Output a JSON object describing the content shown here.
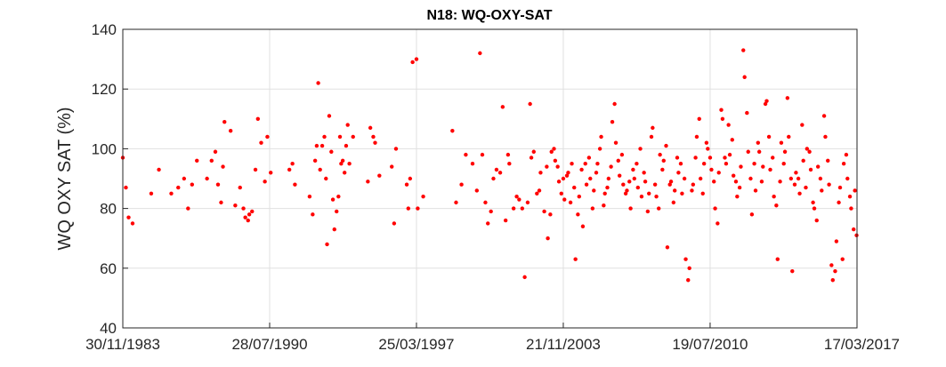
{
  "chart_data": {
    "type": "scatter",
    "title": "N18: WQ-OXY-SAT",
    "xlabel": "",
    "ylabel": "WQ OXY SAT (%)",
    "x_scale": "date",
    "xlim": [
      "1983-11-30",
      "2017-03-17"
    ],
    "ylim": [
      40,
      140
    ],
    "x_ticks": [
      "1983-11-30",
      "1990-07-28",
      "1997-03-25",
      "2003-11-21",
      "2010-07-19",
      "2017-03-17"
    ],
    "x_tick_labels": [
      "30/11/1983",
      "28/07/1990",
      "25/03/1997",
      "21/11/2003",
      "19/07/2010",
      "17/03/2017"
    ],
    "y_ticks": [
      40,
      60,
      80,
      100,
      120,
      140
    ],
    "y_tick_labels": [
      "40",
      "60",
      "80",
      "100",
      "120",
      "140"
    ],
    "grid": true,
    "marker_color": "#ff0000",
    "points": [
      [
        "1983-11-30",
        97
      ],
      [
        "1984-01-20",
        87
      ],
      [
        "1984-03-05",
        77
      ],
      [
        "1984-05-10",
        75
      ],
      [
        "1985-03-15",
        85
      ],
      [
        "1985-07-20",
        93
      ],
      [
        "1986-02-10",
        85
      ],
      [
        "1986-06-05",
        87
      ],
      [
        "1986-09-10",
        90
      ],
      [
        "1986-11-15",
        80
      ],
      [
        "1987-01-20",
        88
      ],
      [
        "1987-04-10",
        96
      ],
      [
        "1987-09-25",
        90
      ],
      [
        "1987-12-10",
        96
      ],
      [
        "1988-02-10",
        99
      ],
      [
        "1988-03-25",
        88
      ],
      [
        "1988-05-15",
        82
      ],
      [
        "1988-06-15",
        94
      ],
      [
        "1988-07-10",
        109
      ],
      [
        "1988-10-20",
        106
      ],
      [
        "1989-01-05",
        81
      ],
      [
        "1989-03-25",
        87
      ],
      [
        "1989-05-20",
        80
      ],
      [
        "1989-06-20",
        77
      ],
      [
        "1989-08-05",
        76
      ],
      [
        "1989-08-25",
        78
      ],
      [
        "1989-10-10",
        79
      ],
      [
        "1989-12-05",
        93
      ],
      [
        "1990-01-15",
        110
      ],
      [
        "1990-03-10",
        102
      ],
      [
        "1990-05-10",
        89
      ],
      [
        "1990-06-20",
        104
      ],
      [
        "1990-08-15",
        92
      ],
      [
        "1991-06-20",
        93
      ],
      [
        "1991-08-10",
        95
      ],
      [
        "1991-09-20",
        88
      ],
      [
        "1992-05-20",
        84
      ],
      [
        "1992-07-10",
        78
      ],
      [
        "1992-08-20",
        96
      ],
      [
        "1992-09-15",
        101
      ],
      [
        "1992-10-10",
        122
      ],
      [
        "1992-11-10",
        93
      ],
      [
        "1992-12-15",
        101
      ],
      [
        "1993-01-20",
        104
      ],
      [
        "1993-02-15",
        90
      ],
      [
        "1993-03-05",
        68
      ],
      [
        "1993-04-10",
        111
      ],
      [
        "1993-05-15",
        99
      ],
      [
        "1993-06-10",
        83
      ],
      [
        "1993-07-05",
        73
      ],
      [
        "1993-08-10",
        79
      ],
      [
        "1993-09-10",
        84
      ],
      [
        "1993-10-05",
        104
      ],
      [
        "1993-10-25",
        95
      ],
      [
        "1993-11-20",
        96
      ],
      [
        "1993-12-20",
        92
      ],
      [
        "1994-01-15",
        101
      ],
      [
        "1994-02-10",
        108
      ],
      [
        "1994-03-10",
        95
      ],
      [
        "1994-05-10",
        104
      ],
      [
        "1995-01-10",
        89
      ],
      [
        "1995-02-20",
        107
      ],
      [
        "1995-04-10",
        104
      ],
      [
        "1995-05-10",
        102
      ],
      [
        "1995-07-20",
        91
      ],
      [
        "1996-02-10",
        94
      ],
      [
        "1996-03-20",
        75
      ],
      [
        "1996-04-20",
        100
      ],
      [
        "1996-10-15",
        88
      ],
      [
        "1996-11-10",
        80
      ],
      [
        "1996-12-10",
        90
      ],
      [
        "1997-01-20",
        129
      ],
      [
        "1997-03-25",
        130
      ],
      [
        "1997-04-15",
        80
      ],
      [
        "1997-07-15",
        84
      ],
      [
        "1998-11-10",
        106
      ],
      [
        "1999-01-10",
        82
      ],
      [
        "1999-04-10",
        88
      ],
      [
        "1999-06-20",
        98
      ],
      [
        "1999-10-10",
        95
      ],
      [
        "1999-12-20",
        86
      ],
      [
        "2000-02-10",
        132
      ],
      [
        "2000-03-20",
        98
      ],
      [
        "2000-05-10",
        82
      ],
      [
        "2000-06-20",
        75
      ],
      [
        "2000-08-10",
        79
      ],
      [
        "2000-09-20",
        90
      ],
      [
        "2000-11-10",
        93
      ],
      [
        "2001-01-10",
        92
      ],
      [
        "2001-02-20",
        114
      ],
      [
        "2001-04-10",
        76
      ],
      [
        "2001-05-20",
        98
      ],
      [
        "2001-06-10",
        95
      ],
      [
        "2001-08-20",
        80
      ],
      [
        "2001-10-10",
        84
      ],
      [
        "2001-11-20",
        83
      ],
      [
        "2002-01-10",
        80
      ],
      [
        "2002-02-20",
        57
      ],
      [
        "2002-04-10",
        82
      ],
      [
        "2002-05-20",
        115
      ],
      [
        "2002-06-10",
        97
      ],
      [
        "2002-07-20",
        99
      ],
      [
        "2002-09-10",
        85
      ],
      [
        "2002-10-20",
        86
      ],
      [
        "2002-11-10",
        92
      ],
      [
        "2003-01-10",
        79
      ],
      [
        "2003-02-20",
        94
      ],
      [
        "2003-03-10",
        70
      ],
      [
        "2003-04-20",
        78
      ],
      [
        "2003-05-10",
        99
      ],
      [
        "2003-06-20",
        100
      ],
      [
        "2003-07-10",
        96
      ],
      [
        "2003-08-20",
        94
      ],
      [
        "2003-09-10",
        89
      ],
      [
        "2003-10-20",
        85
      ],
      [
        "2003-11-21",
        90
      ],
      [
        "2003-12-10",
        83
      ],
      [
        "2004-01-20",
        91
      ],
      [
        "2004-02-10",
        92
      ],
      [
        "2004-03-20",
        82
      ],
      [
        "2004-04-10",
        95
      ],
      [
        "2004-05-20",
        87
      ],
      [
        "2004-06-10",
        63
      ],
      [
        "2004-07-20",
        78
      ],
      [
        "2004-08-10",
        84
      ],
      [
        "2004-09-20",
        93
      ],
      [
        "2004-10-10",
        74
      ],
      [
        "2004-11-20",
        95
      ],
      [
        "2004-12-10",
        88
      ],
      [
        "2005-01-20",
        97
      ],
      [
        "2005-02-10",
        90
      ],
      [
        "2005-03-20",
        80
      ],
      [
        "2005-04-10",
        86
      ],
      [
        "2005-05-20",
        92
      ],
      [
        "2005-06-10",
        95
      ],
      [
        "2005-07-20",
        100
      ],
      [
        "2005-08-10",
        104
      ],
      [
        "2005-09-20",
        81
      ],
      [
        "2005-10-10",
        85
      ],
      [
        "2005-11-20",
        87
      ],
      [
        "2005-12-10",
        90
      ],
      [
        "2006-01-20",
        94
      ],
      [
        "2006-02-10",
        109
      ],
      [
        "2006-03-20",
        115
      ],
      [
        "2006-04-10",
        102
      ],
      [
        "2006-05-20",
        96
      ],
      [
        "2006-06-10",
        91
      ],
      [
        "2006-07-20",
        98
      ],
      [
        "2006-08-10",
        88
      ],
      [
        "2006-09-20",
        85
      ],
      [
        "2006-10-10",
        86
      ],
      [
        "2006-11-20",
        89
      ],
      [
        "2006-12-10",
        80
      ],
      [
        "2007-01-20",
        93
      ],
      [
        "2007-02-10",
        90
      ],
      [
        "2007-03-20",
        95
      ],
      [
        "2007-04-10",
        87
      ],
      [
        "2007-05-20",
        100
      ],
      [
        "2007-06-10",
        84
      ],
      [
        "2007-07-20",
        92
      ],
      [
        "2007-08-10",
        89
      ],
      [
        "2007-09-20",
        79
      ],
      [
        "2007-10-10",
        85
      ],
      [
        "2007-11-20",
        104
      ],
      [
        "2007-12-10",
        107
      ],
      [
        "2008-01-20",
        88
      ],
      [
        "2008-02-10",
        84
      ],
      [
        "2008-03-20",
        80
      ],
      [
        "2008-04-10",
        98
      ],
      [
        "2008-05-20",
        93
      ],
      [
        "2008-06-10",
        96
      ],
      [
        "2008-07-20",
        101
      ],
      [
        "2008-08-10",
        67
      ],
      [
        "2008-09-20",
        88
      ],
      [
        "2008-10-10",
        89
      ],
      [
        "2008-11-20",
        82
      ],
      [
        "2008-12-10",
        86
      ],
      [
        "2009-01-20",
        97
      ],
      [
        "2009-02-10",
        92
      ],
      [
        "2009-03-20",
        95
      ],
      [
        "2009-04-10",
        85
      ],
      [
        "2009-05-20",
        90
      ],
      [
        "2009-06-10",
        63
      ],
      [
        "2009-07-20",
        56
      ],
      [
        "2009-08-10",
        60
      ],
      [
        "2009-09-20",
        86
      ],
      [
        "2009-10-10",
        88
      ],
      [
        "2009-11-20",
        97
      ],
      [
        "2009-12-10",
        104
      ],
      [
        "2010-01-20",
        110
      ],
      [
        "2010-02-10",
        90
      ],
      [
        "2010-03-20",
        85
      ],
      [
        "2010-04-10",
        95
      ],
      [
        "2010-05-20",
        102
      ],
      [
        "2010-06-10",
        100
      ],
      [
        "2010-07-19",
        97
      ],
      [
        "2010-08-10",
        93
      ],
      [
        "2010-09-20",
        89
      ],
      [
        "2010-10-10",
        80
      ],
      [
        "2010-11-20",
        75
      ],
      [
        "2010-12-10",
        92
      ],
      [
        "2011-01-20",
        113
      ],
      [
        "2011-02-10",
        110
      ],
      [
        "2011-03-20",
        97
      ],
      [
        "2011-04-10",
        95
      ],
      [
        "2011-05-20",
        108
      ],
      [
        "2011-06-10",
        98
      ],
      [
        "2011-07-20",
        103
      ],
      [
        "2011-08-10",
        91
      ],
      [
        "2011-09-20",
        89
      ],
      [
        "2011-10-10",
        84
      ],
      [
        "2011-11-20",
        87
      ],
      [
        "2011-12-10",
        94
      ],
      [
        "2012-01-20",
        133
      ],
      [
        "2012-02-10",
        124
      ],
      [
        "2012-03-20",
        112
      ],
      [
        "2012-04-10",
        99
      ],
      [
        "2012-05-20",
        90
      ],
      [
        "2012-06-10",
        78
      ],
      [
        "2012-07-20",
        95
      ],
      [
        "2012-08-10",
        86
      ],
      [
        "2012-09-20",
        102
      ],
      [
        "2012-10-10",
        99
      ],
      [
        "2012-11-20",
        89
      ],
      [
        "2012-12-10",
        94
      ],
      [
        "2013-01-20",
        115
      ],
      [
        "2013-02-10",
        116
      ],
      [
        "2013-03-20",
        104
      ],
      [
        "2013-04-10",
        93
      ],
      [
        "2013-05-20",
        97
      ],
      [
        "2013-06-10",
        84
      ],
      [
        "2013-07-20",
        81
      ],
      [
        "2013-08-10",
        63
      ],
      [
        "2013-09-20",
        89
      ],
      [
        "2013-10-10",
        102
      ],
      [
        "2013-11-20",
        95
      ],
      [
        "2013-12-10",
        99
      ],
      [
        "2014-01-20",
        117
      ],
      [
        "2014-02-10",
        104
      ],
      [
        "2014-03-20",
        90
      ],
      [
        "2014-04-10",
        59
      ],
      [
        "2014-05-20",
        88
      ],
      [
        "2014-06-10",
        92
      ],
      [
        "2014-07-20",
        90
      ],
      [
        "2014-08-10",
        85
      ],
      [
        "2014-09-20",
        108
      ],
      [
        "2014-10-10",
        96
      ],
      [
        "2014-11-20",
        87
      ],
      [
        "2014-12-10",
        100
      ],
      [
        "2015-01-20",
        99
      ],
      [
        "2015-02-10",
        93
      ],
      [
        "2015-03-20",
        82
      ],
      [
        "2015-04-10",
        80
      ],
      [
        "2015-05-20",
        76
      ],
      [
        "2015-06-10",
        94
      ],
      [
        "2015-07-20",
        90
      ],
      [
        "2015-08-10",
        86
      ],
      [
        "2015-09-20",
        111
      ],
      [
        "2015-10-10",
        104
      ],
      [
        "2015-11-20",
        96
      ],
      [
        "2015-12-10",
        88
      ],
      [
        "2016-01-20",
        61
      ],
      [
        "2016-02-10",
        56
      ],
      [
        "2016-03-20",
        59
      ],
      [
        "2016-04-10",
        69
      ],
      [
        "2016-05-20",
        82
      ],
      [
        "2016-06-10",
        87
      ],
      [
        "2016-07-20",
        63
      ],
      [
        "2016-08-10",
        95
      ],
      [
        "2016-09-20",
        98
      ],
      [
        "2016-10-10",
        90
      ],
      [
        "2016-11-20",
        84
      ],
      [
        "2016-12-10",
        80
      ],
      [
        "2017-01-20",
        73
      ],
      [
        "2017-02-10",
        86
      ],
      [
        "2017-03-10",
        71
      ]
    ]
  }
}
